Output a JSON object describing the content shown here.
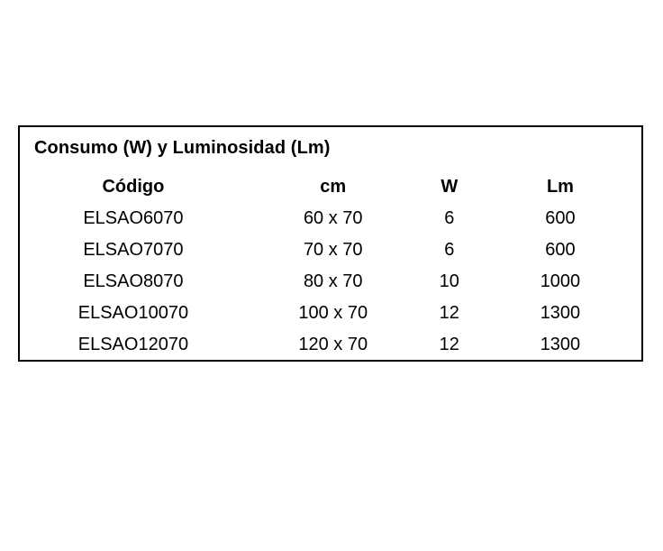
{
  "colors": {
    "background": "#ffffff",
    "border": "#000000",
    "text": "#000000"
  },
  "panel": {
    "title": "Consumo (W) y Luminosidad (Lm)",
    "columns": [
      "Código",
      "cm",
      "W",
      "Lm"
    ],
    "rows": [
      [
        "ELSAO6070",
        "60 x 70",
        "6",
        "600"
      ],
      [
        "ELSAO7070",
        "70 x 70",
        "6",
        "600"
      ],
      [
        "ELSAO8070",
        "80 x 70",
        "10",
        "1000"
      ],
      [
        "ELSAO10070",
        "100 x 70",
        "12",
        "1300"
      ],
      [
        "ELSAO12070",
        "120 x 70",
        "12",
        "1300"
      ]
    ]
  }
}
